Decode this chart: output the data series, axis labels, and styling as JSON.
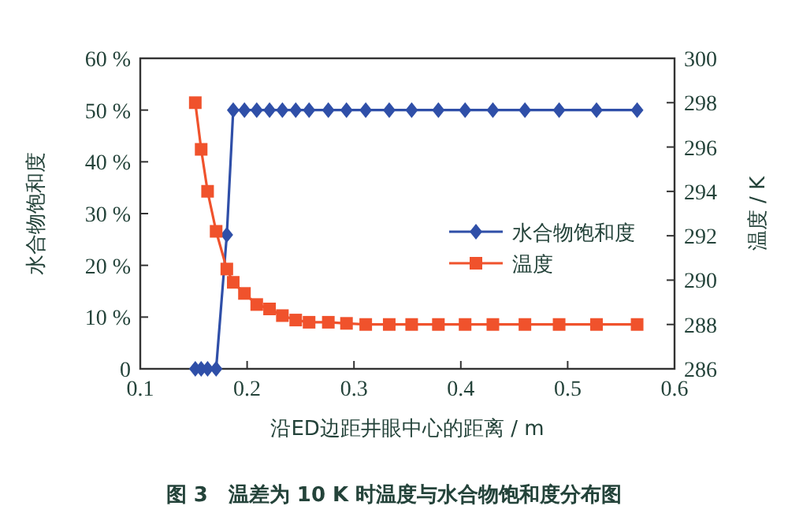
{
  "chart_data": {
    "type": "line",
    "title": "图 3　温差为 10 K 时温度与水合物饱和度分布图",
    "xlabel": "沿ED边距井眼中心的距离 / m",
    "ylabel": "水合物饱和度",
    "y2label": "温度 / K",
    "x": [
      0.1515,
      0.157,
      0.163,
      0.171,
      0.181,
      0.187,
      0.1975,
      0.209,
      0.221,
      0.233,
      0.2455,
      0.258,
      0.276,
      0.293,
      0.311,
      0.333,
      0.354,
      0.379,
      0.404,
      0.43,
      0.46,
      0.492,
      0.527,
      0.565
    ],
    "series": [
      {
        "name": "水合物饱和度",
        "color": "#2f4fa8",
        "marker": "diamond",
        "values": [
          0,
          0,
          0,
          0,
          25.9,
          50,
          50,
          50,
          50,
          50,
          50,
          50,
          50,
          50,
          50,
          50,
          50,
          50,
          50,
          50,
          50,
          50,
          50,
          50
        ]
      },
      {
        "name": "温度",
        "color": "#f0522c",
        "marker": "square",
        "axis": "y2",
        "values": [
          298.0,
          295.9,
          294.0,
          292.2,
          290.5,
          289.9,
          289.4,
          288.9,
          288.7,
          288.4,
          288.2,
          288.1,
          288.1,
          288.05,
          288.0,
          288.0,
          288.0,
          288.0,
          288.0,
          288.0,
          288.0,
          288.0,
          288.0,
          288.0
        ]
      }
    ],
    "xlim": [
      0.1,
      0.6
    ],
    "xticks": [
      0.1,
      0.2,
      0.3,
      0.4,
      0.5,
      0.6
    ],
    "ylim": [
      0,
      60
    ],
    "yticks": [
      0,
      {
        "value": 10,
        "label": "10 %"
      },
      {
        "value": 20,
        "label": "20 %"
      },
      {
        "value": 30,
        "label": "30 %"
      },
      {
        "value": 40,
        "label": "40 %"
      },
      {
        "value": 50,
        "label": "50 %"
      },
      {
        "value": 60,
        "label": "60 %"
      }
    ],
    "y2lim": [
      286,
      300
    ],
    "y2ticks": [
      286,
      288,
      290,
      292,
      294,
      296,
      298,
      300
    ],
    "legend": "right"
  }
}
